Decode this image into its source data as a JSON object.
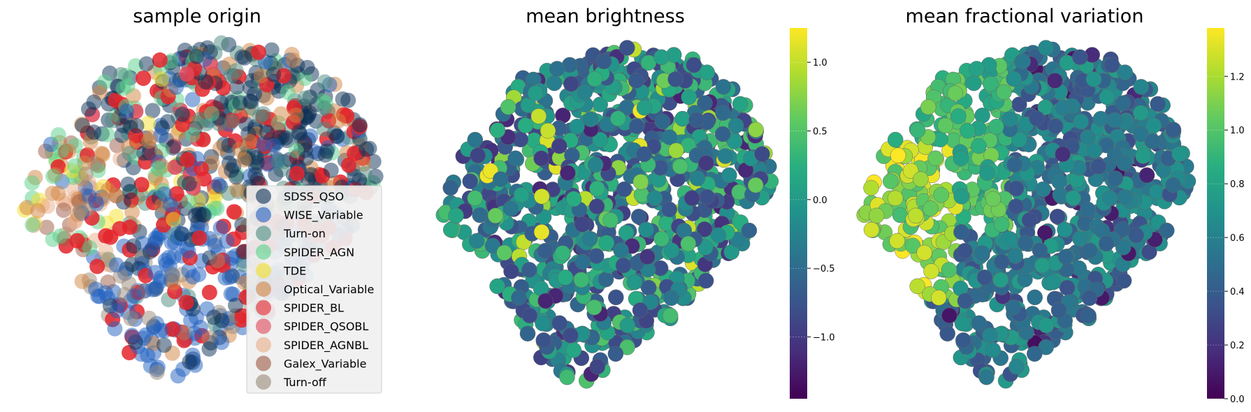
{
  "chart_data": [
    {
      "type": "scatter",
      "title": "sample origin",
      "legend_position": "lower-right",
      "series": [
        {
          "name": "SDSS_QSO",
          "color": "#0b2f55",
          "region": "upper-right"
        },
        {
          "name": "WISE_Variable",
          "color": "#1f5fbf",
          "region": "lower"
        },
        {
          "name": "Turn-on",
          "color": "#4c8a7e",
          "region": "upper"
        },
        {
          "name": "SPIDER_AGN",
          "color": "#58d08a",
          "region": "upper-left"
        },
        {
          "name": "TDE",
          "color": "#f3df2a",
          "region": "left"
        },
        {
          "name": "Optical_Variable",
          "color": "#d2843f",
          "region": "left"
        },
        {
          "name": "SPIDER_BL",
          "color": "#e3242b",
          "region": "all"
        },
        {
          "name": "SPIDER_QSOBL",
          "color": "#e0485a",
          "region": "all"
        },
        {
          "name": "SPIDER_AGNBL",
          "color": "#e9ae8a",
          "region": "left"
        },
        {
          "name": "Galex_Variable",
          "color": "#9b5a45",
          "region": "left"
        },
        {
          "name": "Turn-off",
          "color": "#9a8a78",
          "region": "left"
        }
      ]
    },
    {
      "type": "scatter",
      "title": "mean brightness",
      "colormap": "viridis",
      "colorbar": {
        "min": -1.45,
        "max": 1.25,
        "ticks": [
          "1.0",
          "0.5",
          "0.0",
          "−0.5",
          "−1.0"
        ],
        "tick_values": [
          1.0,
          0.5,
          0.0,
          -0.5,
          -1.0
        ]
      }
    },
    {
      "type": "scatter",
      "title": "mean fractional variation",
      "colormap": "viridis",
      "colorbar": {
        "min": 0.0,
        "max": 1.38,
        "ticks": [
          "1.2",
          "1.0",
          "0.8",
          "0.6",
          "0.4",
          "0.2",
          "0.0"
        ],
        "tick_values": [
          1.2,
          1.0,
          0.8,
          0.6,
          0.4,
          0.2,
          0.0
        ]
      }
    }
  ]
}
